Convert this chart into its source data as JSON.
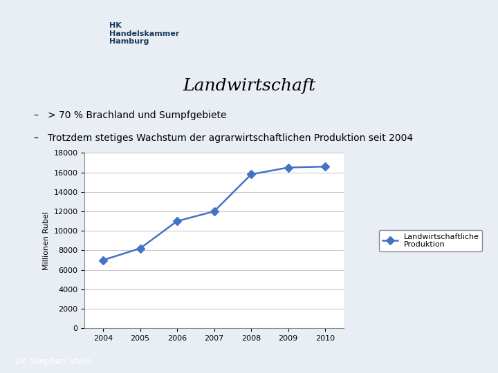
{
  "title": "Landwirtschaft",
  "bullet1": "> 70 % Brachland und Sumpfgebiete",
  "bullet2": "Trotzdem stetiges Wachstum der agrarwirtschaftlichen Produktion seit 2004",
  "years": [
    2004,
    2005,
    2006,
    2007,
    2008,
    2009,
    2010
  ],
  "values": [
    7000,
    8200,
    11000,
    12000,
    15800,
    16500,
    16600
  ],
  "ylabel": "Millionen Rubel",
  "legend_label": "Landwirtschaftliche\nProduktion",
  "line_color": "#4472C4",
  "marker": "D",
  "ylim": [
    0,
    18000
  ],
  "yticks": [
    0,
    2000,
    4000,
    6000,
    8000,
    10000,
    12000,
    14000,
    16000,
    18000
  ],
  "bg_color": "#FFFFFF",
  "slide_bg": "#E8EEF4",
  "title_color": "#000000",
  "footer_text": "Dr. Stephan Stein",
  "footer_bg": "#4472C4"
}
